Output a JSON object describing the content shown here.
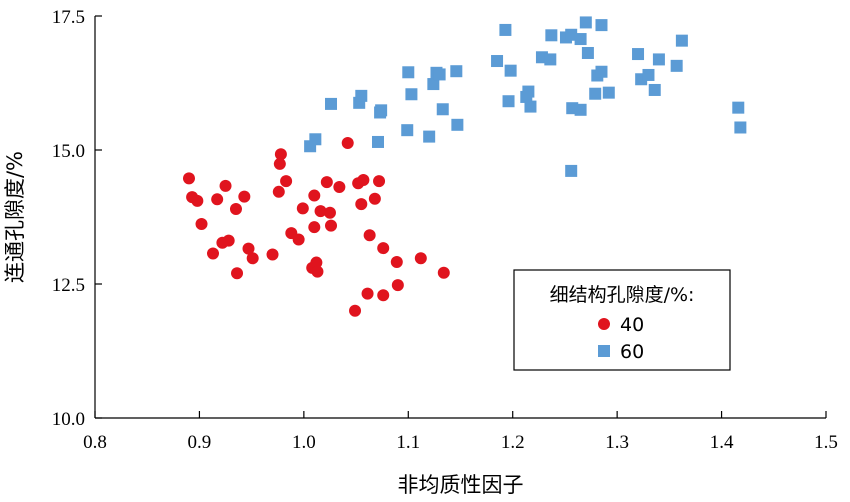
{
  "chart_data": {
    "type": "scatter",
    "title": "",
    "xlabel": "非均质性因子",
    "ylabel": "连通孔隙度/%",
    "xlim": [
      0.8,
      1.5
    ],
    "ylim": [
      10.0,
      17.5
    ],
    "xticks": [
      "0.8",
      "0.9",
      "1.0",
      "1.1",
      "1.2",
      "1.3",
      "1.4",
      "1.5"
    ],
    "yticks": [
      "10.0",
      "12.5",
      "15.0",
      "17.5"
    ],
    "grid": false,
    "legend": {
      "title": "细结构孔隙度/%:",
      "placement": "bottom-right"
    },
    "colors": {
      "series_40": "#e0141e",
      "series_60": "#5b9bd5"
    },
    "series": [
      {
        "name": "40",
        "marker": "circle",
        "points": [
          [
            0.89,
            14.47
          ],
          [
            0.893,
            14.12
          ],
          [
            0.898,
            14.05
          ],
          [
            0.902,
            13.62
          ],
          [
            0.913,
            13.07
          ],
          [
            0.917,
            14.08
          ],
          [
            0.922,
            13.27
          ],
          [
            0.925,
            14.33
          ],
          [
            0.928,
            13.31
          ],
          [
            0.935,
            13.9
          ],
          [
            0.936,
            12.7
          ],
          [
            0.943,
            14.13
          ],
          [
            0.947,
            13.16
          ],
          [
            0.951,
            12.98
          ],
          [
            0.97,
            13.05
          ],
          [
            0.976,
            14.22
          ],
          [
            0.977,
            14.74
          ],
          [
            0.978,
            14.92
          ],
          [
            0.983,
            14.42
          ],
          [
            0.988,
            13.45
          ],
          [
            0.995,
            13.33
          ],
          [
            0.999,
            13.91
          ],
          [
            1.008,
            12.8
          ],
          [
            1.01,
            13.56
          ],
          [
            1.01,
            14.15
          ],
          [
            1.012,
            12.9
          ],
          [
            1.013,
            12.73
          ],
          [
            1.016,
            13.86
          ],
          [
            1.022,
            14.4
          ],
          [
            1.025,
            13.83
          ],
          [
            1.026,
            13.59
          ],
          [
            1.034,
            14.31
          ],
          [
            1.042,
            15.13
          ],
          [
            1.049,
            12.0
          ],
          [
            1.052,
            14.38
          ],
          [
            1.055,
            13.99
          ],
          [
            1.057,
            14.44
          ],
          [
            1.061,
            12.32
          ],
          [
            1.063,
            13.41
          ],
          [
            1.068,
            14.09
          ],
          [
            1.072,
            14.42
          ],
          [
            1.076,
            13.17
          ],
          [
            1.076,
            12.29
          ],
          [
            1.089,
            12.91
          ],
          [
            1.09,
            12.48
          ],
          [
            1.112,
            12.98
          ],
          [
            1.134,
            12.71
          ]
        ]
      },
      {
        "name": "60",
        "marker": "square",
        "points": [
          [
            1.006,
            15.07
          ],
          [
            1.011,
            15.2
          ],
          [
            1.026,
            15.86
          ],
          [
            1.053,
            15.88
          ],
          [
            1.055,
            16.01
          ],
          [
            1.071,
            15.15
          ],
          [
            1.073,
            15.7
          ],
          [
            1.074,
            15.74
          ],
          [
            1.099,
            15.37
          ],
          [
            1.1,
            16.45
          ],
          [
            1.103,
            16.04
          ],
          [
            1.12,
            15.25
          ],
          [
            1.124,
            16.23
          ],
          [
            1.127,
            16.44
          ],
          [
            1.13,
            16.41
          ],
          [
            1.133,
            15.76
          ],
          [
            1.146,
            16.47
          ],
          [
            1.147,
            15.47
          ],
          [
            1.185,
            16.66
          ],
          [
            1.193,
            17.24
          ],
          [
            1.196,
            15.91
          ],
          [
            1.198,
            16.48
          ],
          [
            1.213,
            15.99
          ],
          [
            1.215,
            16.09
          ],
          [
            1.217,
            15.81
          ],
          [
            1.228,
            16.73
          ],
          [
            1.236,
            16.69
          ],
          [
            1.237,
            17.14
          ],
          [
            1.251,
            17.1
          ],
          [
            1.256,
            17.15
          ],
          [
            1.256,
            14.61
          ],
          [
            1.257,
            15.78
          ],
          [
            1.265,
            15.75
          ],
          [
            1.265,
            17.07
          ],
          [
            1.27,
            17.38
          ],
          [
            1.272,
            16.81
          ],
          [
            1.279,
            16.05
          ],
          [
            1.281,
            16.39
          ],
          [
            1.285,
            16.46
          ],
          [
            1.285,
            17.33
          ],
          [
            1.292,
            16.07
          ],
          [
            1.32,
            16.79
          ],
          [
            1.323,
            16.32
          ],
          [
            1.33,
            16.4
          ],
          [
            1.336,
            16.12
          ],
          [
            1.34,
            16.69
          ],
          [
            1.357,
            16.57
          ],
          [
            1.362,
            17.04
          ],
          [
            1.416,
            15.79
          ],
          [
            1.418,
            15.42
          ]
        ]
      }
    ]
  }
}
